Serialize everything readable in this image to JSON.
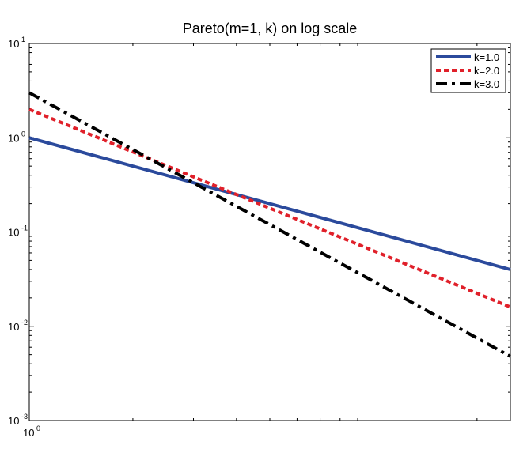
{
  "chart_data": {
    "type": "line",
    "title": "Pareto(m=1, k) on log scale",
    "xlabel": "",
    "ylabel": "",
    "xscale": "log",
    "yscale": "log",
    "xlim": [
      1,
      25
    ],
    "ylim": [
      0.001,
      10
    ],
    "grid": false,
    "legend_position": "top-right",
    "x_tick_labels": [
      {
        "value": 1,
        "base": "10",
        "exp": "0"
      }
    ],
    "y_tick_labels": [
      {
        "value": 10,
        "base": "10",
        "exp": "1"
      },
      {
        "value": 1,
        "base": "10",
        "exp": "0"
      },
      {
        "value": 0.1,
        "base": "10",
        "exp": "-1"
      },
      {
        "value": 0.01,
        "base": "10",
        "exp": "-2"
      },
      {
        "value": 0.001,
        "base": "10",
        "exp": "-3"
      }
    ],
    "series": [
      {
        "name": "k=1.0",
        "color": "#2b4a9c",
        "style": "solid",
        "x": [
          1,
          25
        ],
        "y": [
          1.0,
          0.04
        ]
      },
      {
        "name": "k=2.0",
        "color": "#e0202a",
        "style": "dotted",
        "x": [
          1,
          25
        ],
        "y": [
          2.0,
          0.016
        ]
      },
      {
        "name": "k=3.0",
        "color": "#000000",
        "style": "dashdot",
        "x": [
          1,
          25
        ],
        "y": [
          3.0,
          0.0048
        ]
      }
    ]
  }
}
